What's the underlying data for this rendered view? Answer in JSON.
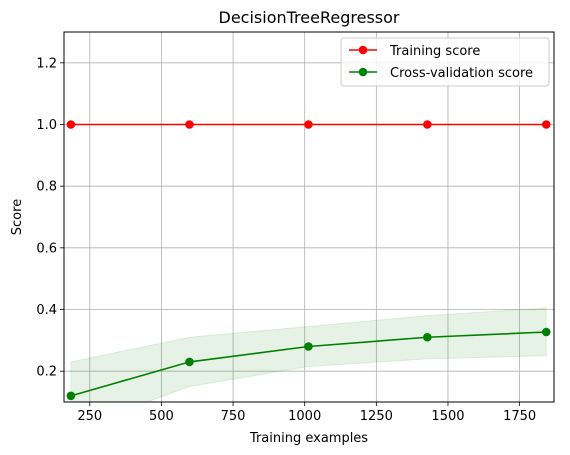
{
  "chart_data": {
    "type": "line",
    "title": "DecisionTreeRegressor",
    "xlabel": "Training examples",
    "ylabel": "Score",
    "xlim": [
      160,
      1870
    ],
    "ylim": [
      0.1,
      1.3
    ],
    "xticks": [
      250,
      500,
      750,
      1000,
      1250,
      1500,
      1750
    ],
    "yticks": [
      0.2,
      0.4,
      0.6,
      0.8,
      1.0,
      1.2
    ],
    "xtick_labels": [
      "250",
      "500",
      "750",
      "1000",
      "1250",
      "1500",
      "1750"
    ],
    "ytick_labels": [
      "0.2",
      "0.4",
      "0.6",
      "0.8",
      "1.0",
      "1.2"
    ],
    "grid": true,
    "legend": "top-right",
    "x": [
      184,
      598,
      1013,
      1428,
      1843
    ],
    "series": [
      {
        "name": "Training score",
        "color": "#ff0000",
        "values": [
          1.0,
          1.0,
          1.0,
          1.0,
          1.0
        ],
        "band_upper": [
          1.0,
          1.0,
          1.0,
          1.0,
          1.0
        ],
        "band_lower": [
          1.0,
          1.0,
          1.0,
          1.0,
          1.0
        ]
      },
      {
        "name": "Cross-validation score",
        "color": "#008000",
        "values": [
          0.12,
          0.23,
          0.28,
          0.31,
          0.327
        ],
        "band_upper": [
          0.23,
          0.31,
          0.345,
          0.38,
          0.405
        ],
        "band_lower": [
          0.01,
          0.15,
          0.215,
          0.24,
          0.25
        ]
      }
    ]
  }
}
